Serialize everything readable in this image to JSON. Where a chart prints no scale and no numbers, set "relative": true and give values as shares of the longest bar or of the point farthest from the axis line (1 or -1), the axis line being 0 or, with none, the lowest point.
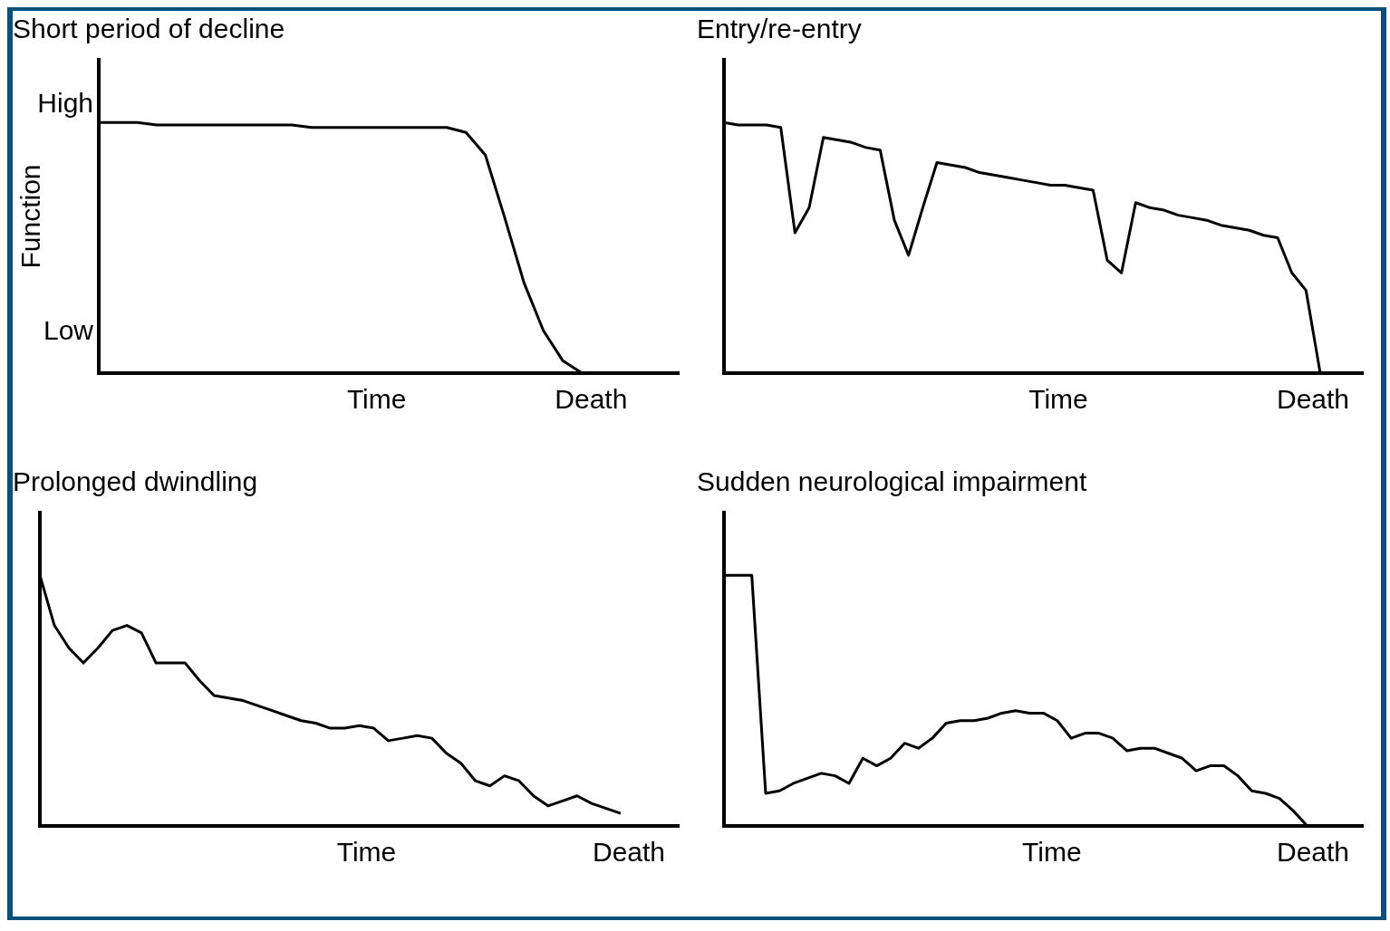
{
  "chart_data": [
    {
      "type": "line",
      "title": "Short period of decline",
      "xlabel": "Time",
      "ylabel": "Function",
      "annotations": [
        "High",
        "Low",
        "Death"
      ],
      "relative": true,
      "color": "#000000",
      "categories": [
        null,
        null,
        null,
        null,
        null,
        null,
        null,
        null,
        null,
        null,
        null,
        null,
        null,
        null,
        null,
        null,
        null,
        null,
        null,
        null,
        null,
        null,
        null,
        null,
        null,
        null,
        null,
        null,
        null,
        null,
        null
      ],
      "values": [
        1,
        1,
        1,
        0.99,
        0.99,
        0.99,
        0.99,
        0.99,
        0.99,
        0.99,
        0.99,
        0.98,
        0.98,
        0.98,
        0.98,
        0.98,
        0.98,
        0.98,
        0.98,
        0.96,
        0.87,
        0.62,
        0.36,
        0.17,
        0.05,
        0,
        null,
        null,
        null,
        null,
        null
      ]
    },
    {
      "type": "line",
      "title": "Entry/re-entry",
      "xlabel": "Time",
      "annotations": [
        "Death"
      ],
      "relative": true,
      "color": "#000000",
      "categories": [
        null,
        null,
        null,
        null,
        null,
        null,
        null,
        null,
        null,
        null,
        null,
        null,
        null,
        null,
        null,
        null,
        null,
        null,
        null,
        null,
        null,
        null,
        null,
        null,
        null,
        null,
        null,
        null,
        null,
        null,
        null,
        null,
        null,
        null,
        null,
        null,
        null,
        null,
        null,
        null,
        null,
        null,
        null,
        null,
        null,
        null
      ],
      "values": [
        1,
        0.99,
        0.99,
        0.99,
        0.98,
        0.56,
        0.66,
        0.94,
        0.93,
        0.92,
        0.9,
        0.89,
        0.61,
        0.47,
        0.66,
        0.84,
        0.83,
        0.82,
        0.8,
        0.79,
        0.78,
        0.77,
        0.76,
        0.75,
        0.75,
        0.74,
        0.73,
        0.45,
        0.4,
        0.68,
        0.66,
        0.65,
        0.63,
        0.62,
        0.61,
        0.59,
        0.58,
        0.57,
        0.55,
        0.54,
        0.4,
        0.33,
        0,
        null,
        null,
        null
      ]
    },
    {
      "type": "line",
      "title": "Prolonged dwindling",
      "xlabel": "Time",
      "annotations": [
        "Death"
      ],
      "relative": true,
      "color": "#000000",
      "categories": [
        null,
        null,
        null,
        null,
        null,
        null,
        null,
        null,
        null,
        null,
        null,
        null,
        null,
        null,
        null,
        null,
        null,
        null,
        null,
        null,
        null,
        null,
        null,
        null,
        null,
        null,
        null,
        null,
        null,
        null,
        null,
        null,
        null,
        null,
        null,
        null,
        null,
        null,
        null,
        null,
        null,
        null,
        null,
        null,
        null
      ],
      "values": [
        1,
        0.8,
        0.71,
        0.65,
        0.71,
        0.78,
        0.8,
        0.77,
        0.65,
        0.65,
        0.65,
        0.58,
        0.52,
        0.51,
        0.5,
        0.48,
        0.46,
        0.44,
        0.42,
        0.41,
        0.39,
        0.39,
        0.4,
        0.39,
        0.34,
        0.35,
        0.36,
        0.35,
        0.29,
        0.25,
        0.18,
        0.16,
        0.2,
        0.18,
        0.12,
        0.08,
        0.1,
        0.12,
        0.09,
        0.07,
        0.05,
        null,
        null,
        null,
        null
      ]
    },
    {
      "type": "line",
      "title": "Sudden neurological impairment",
      "xlabel": "Time",
      "annotations": [
        "Death"
      ],
      "relative": true,
      "color": "#000000",
      "categories": [
        null,
        null,
        null,
        null,
        null,
        null,
        null,
        null,
        null,
        null,
        null,
        null,
        null,
        null,
        null,
        null,
        null,
        null,
        null,
        null,
        null,
        null,
        null,
        null,
        null,
        null,
        null,
        null,
        null,
        null,
        null,
        null,
        null,
        null,
        null,
        null,
        null,
        null,
        null,
        null,
        null,
        null,
        null,
        null,
        null,
        null,
        null
      ],
      "values": [
        1,
        1,
        1,
        0.13,
        0.14,
        0.17,
        0.19,
        0.21,
        0.2,
        0.17,
        0.27,
        0.24,
        0.27,
        0.33,
        0.31,
        0.35,
        0.41,
        0.42,
        0.42,
        0.43,
        0.45,
        0.46,
        0.45,
        0.45,
        0.42,
        0.35,
        0.37,
        0.37,
        0.35,
        0.3,
        0.31,
        0.31,
        0.29,
        0.27,
        0.22,
        0.24,
        0.24,
        0.2,
        0.14,
        0.13,
        0.11,
        0.06,
        0,
        null,
        null,
        null,
        null
      ]
    }
  ]
}
